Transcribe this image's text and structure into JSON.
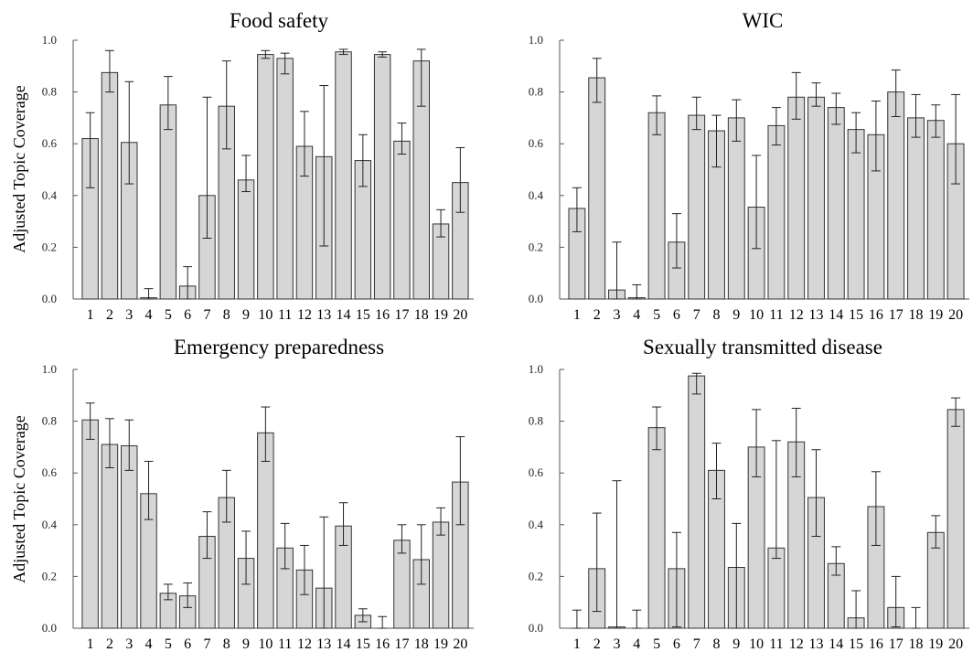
{
  "style": {
    "bar_fill": "#d6d6d6",
    "bar_stroke": "#333333",
    "axis_color": "#555555",
    "errorbar_color": "#222222"
  },
  "chart_data": [
    {
      "type": "bar",
      "title": "Food safety",
      "xlabel": "",
      "ylabel": "Adjusted Topic Coverage",
      "ylim": [
        0,
        1.0
      ],
      "yticks": [
        "0.0",
        "0.2",
        "0.4",
        "0.6",
        "0.8",
        "1.0"
      ],
      "categories": [
        "1",
        "2",
        "3",
        "4",
        "5",
        "6",
        "7",
        "8",
        "9",
        "10",
        "11",
        "12",
        "13",
        "14",
        "15",
        "16",
        "17",
        "18",
        "19",
        "20"
      ],
      "values": [
        0.62,
        0.875,
        0.605,
        0.005,
        0.75,
        0.05,
        0.4,
        0.745,
        0.46,
        0.945,
        0.93,
        0.59,
        0.55,
        0.955,
        0.535,
        0.945,
        0.61,
        0.92,
        0.29,
        0.45
      ],
      "error_low": [
        0.43,
        0.8,
        0.445,
        0.0,
        0.655,
        0.0,
        0.235,
        0.58,
        0.415,
        0.93,
        0.87,
        0.475,
        0.205,
        0.945,
        0.435,
        0.935,
        0.56,
        0.745,
        0.24,
        0.335
      ],
      "error_high": [
        0.72,
        0.96,
        0.84,
        0.04,
        0.86,
        0.125,
        0.78,
        0.92,
        0.555,
        0.96,
        0.95,
        0.725,
        0.825,
        0.965,
        0.635,
        0.955,
        0.68,
        0.965,
        0.345,
        0.585
      ],
      "grid": false
    },
    {
      "type": "bar",
      "title": "WIC",
      "xlabel": "",
      "ylabel": "",
      "ylim": [
        0,
        1.0
      ],
      "yticks": [
        "0.0",
        "0.2",
        "0.4",
        "0.6",
        "0.8",
        "1.0"
      ],
      "categories": [
        "1",
        "2",
        "3",
        "4",
        "5",
        "6",
        "7",
        "8",
        "9",
        "10",
        "11",
        "12",
        "13",
        "14",
        "15",
        "16",
        "17",
        "18",
        "19",
        "20"
      ],
      "values": [
        0.35,
        0.855,
        0.035,
        0.005,
        0.72,
        0.22,
        0.71,
        0.65,
        0.7,
        0.355,
        0.67,
        0.78,
        0.78,
        0.74,
        0.655,
        0.635,
        0.8,
        0.7,
        0.69,
        0.6
      ],
      "error_low": [
        0.26,
        0.76,
        0.0,
        0.0,
        0.635,
        0.12,
        0.655,
        0.51,
        0.61,
        0.195,
        0.595,
        0.695,
        0.745,
        0.675,
        0.565,
        0.495,
        0.705,
        0.625,
        0.625,
        0.445
      ],
      "error_high": [
        0.43,
        0.93,
        0.22,
        0.055,
        0.785,
        0.33,
        0.78,
        0.71,
        0.77,
        0.555,
        0.74,
        0.875,
        0.835,
        0.795,
        0.72,
        0.765,
        0.885,
        0.79,
        0.75,
        0.79
      ],
      "grid": false
    },
    {
      "type": "bar",
      "title": "Emergency preparedness",
      "xlabel": "",
      "ylabel": "Adjusted Topic Coverage",
      "ylim": [
        0,
        1.0
      ],
      "yticks": [
        "0.0",
        "0.2",
        "0.4",
        "0.6",
        "0.8",
        "1.0"
      ],
      "categories": [
        "1",
        "2",
        "3",
        "4",
        "5",
        "6",
        "7",
        "8",
        "9",
        "10",
        "11",
        "12",
        "13",
        "14",
        "15",
        "16",
        "17",
        "18",
        "19",
        "20"
      ],
      "values": [
        0.805,
        0.71,
        0.705,
        0.52,
        0.135,
        0.125,
        0.355,
        0.505,
        0.27,
        0.755,
        0.31,
        0.225,
        0.155,
        0.395,
        0.05,
        0.0,
        0.34,
        0.265,
        0.41,
        0.565
      ],
      "error_low": [
        0.73,
        0.62,
        0.61,
        0.42,
        0.11,
        0.08,
        0.27,
        0.41,
        0.17,
        0.645,
        0.23,
        0.13,
        0.0,
        0.32,
        0.025,
        0.0,
        0.29,
        0.17,
        0.36,
        0.4
      ],
      "error_high": [
        0.87,
        0.81,
        0.805,
        0.645,
        0.17,
        0.175,
        0.45,
        0.61,
        0.375,
        0.855,
        0.405,
        0.32,
        0.43,
        0.485,
        0.075,
        0.045,
        0.4,
        0.4,
        0.465,
        0.74
      ],
      "grid": false
    },
    {
      "type": "bar",
      "title": "Sexually transmitted disease",
      "xlabel": "",
      "ylabel": "",
      "ylim": [
        0,
        1.0
      ],
      "yticks": [
        "0.0",
        "0.2",
        "0.4",
        "0.6",
        "0.8",
        "1.0"
      ],
      "categories": [
        "1",
        "2",
        "3",
        "4",
        "5",
        "6",
        "7",
        "8",
        "9",
        "10",
        "11",
        "12",
        "13",
        "14",
        "15",
        "16",
        "17",
        "18",
        "19",
        "20"
      ],
      "values": [
        0.0,
        0.23,
        0.005,
        0.0,
        0.775,
        0.23,
        0.975,
        0.61,
        0.235,
        0.7,
        0.31,
        0.72,
        0.505,
        0.25,
        0.04,
        0.47,
        0.08,
        0.0,
        0.37,
        0.845
      ],
      "error_low": [
        0.0,
        0.065,
        0.0,
        0.0,
        0.69,
        0.005,
        0.905,
        0.5,
        0.0,
        0.585,
        0.27,
        0.585,
        0.355,
        0.205,
        0.0,
        0.32,
        0.005,
        0.0,
        0.31,
        0.78
      ],
      "error_high": [
        0.07,
        0.445,
        0.57,
        0.07,
        0.855,
        0.37,
        0.985,
        0.715,
        0.405,
        0.845,
        0.725,
        0.85,
        0.69,
        0.315,
        0.145,
        0.605,
        0.2,
        0.08,
        0.435,
        0.89
      ],
      "grid": false
    }
  ]
}
